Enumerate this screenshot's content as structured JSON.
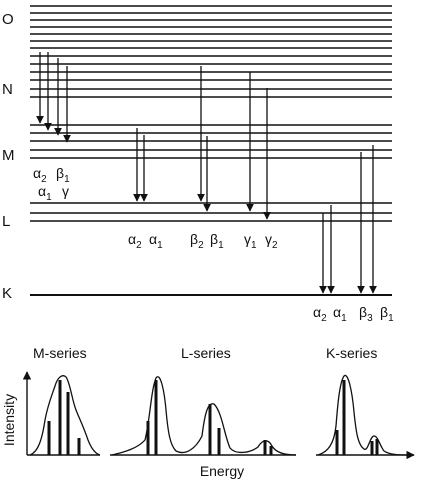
{
  "shells": [
    {
      "name": "O",
      "levels": 6
    },
    {
      "name": "N",
      "levels": 7
    },
    {
      "name": "M",
      "levels": 5
    },
    {
      "name": "L",
      "levels": 3
    },
    {
      "name": "K",
      "levels": 1
    }
  ],
  "m_series_labels": [
    {
      "greek": "α",
      "sub": "2"
    },
    {
      "greek": "β",
      "sub": "1"
    },
    {
      "greek": "α",
      "sub": "1"
    },
    {
      "greek": "γ",
      "sub": ""
    }
  ],
  "l_series_labels": [
    {
      "greek": "α",
      "sub": "2"
    },
    {
      "greek": "α",
      "sub": "1"
    },
    {
      "greek": "β",
      "sub": "2"
    },
    {
      "greek": "β",
      "sub": "1"
    },
    {
      "greek": "γ",
      "sub": "1"
    },
    {
      "greek": "γ",
      "sub": "2"
    }
  ],
  "k_series_labels": [
    {
      "greek": "α",
      "sub": "2"
    },
    {
      "greek": "α",
      "sub": "1"
    },
    {
      "greek": "β",
      "sub": "3"
    },
    {
      "greek": "β",
      "sub": "1"
    }
  ],
  "spectra": {
    "series_titles": [
      "M-series",
      "L-series",
      "K-series"
    ],
    "ylabel": "Intensity",
    "xlabel": "Energy"
  },
  "colors": {
    "ink": "#111111",
    "background": "#ffffff"
  }
}
